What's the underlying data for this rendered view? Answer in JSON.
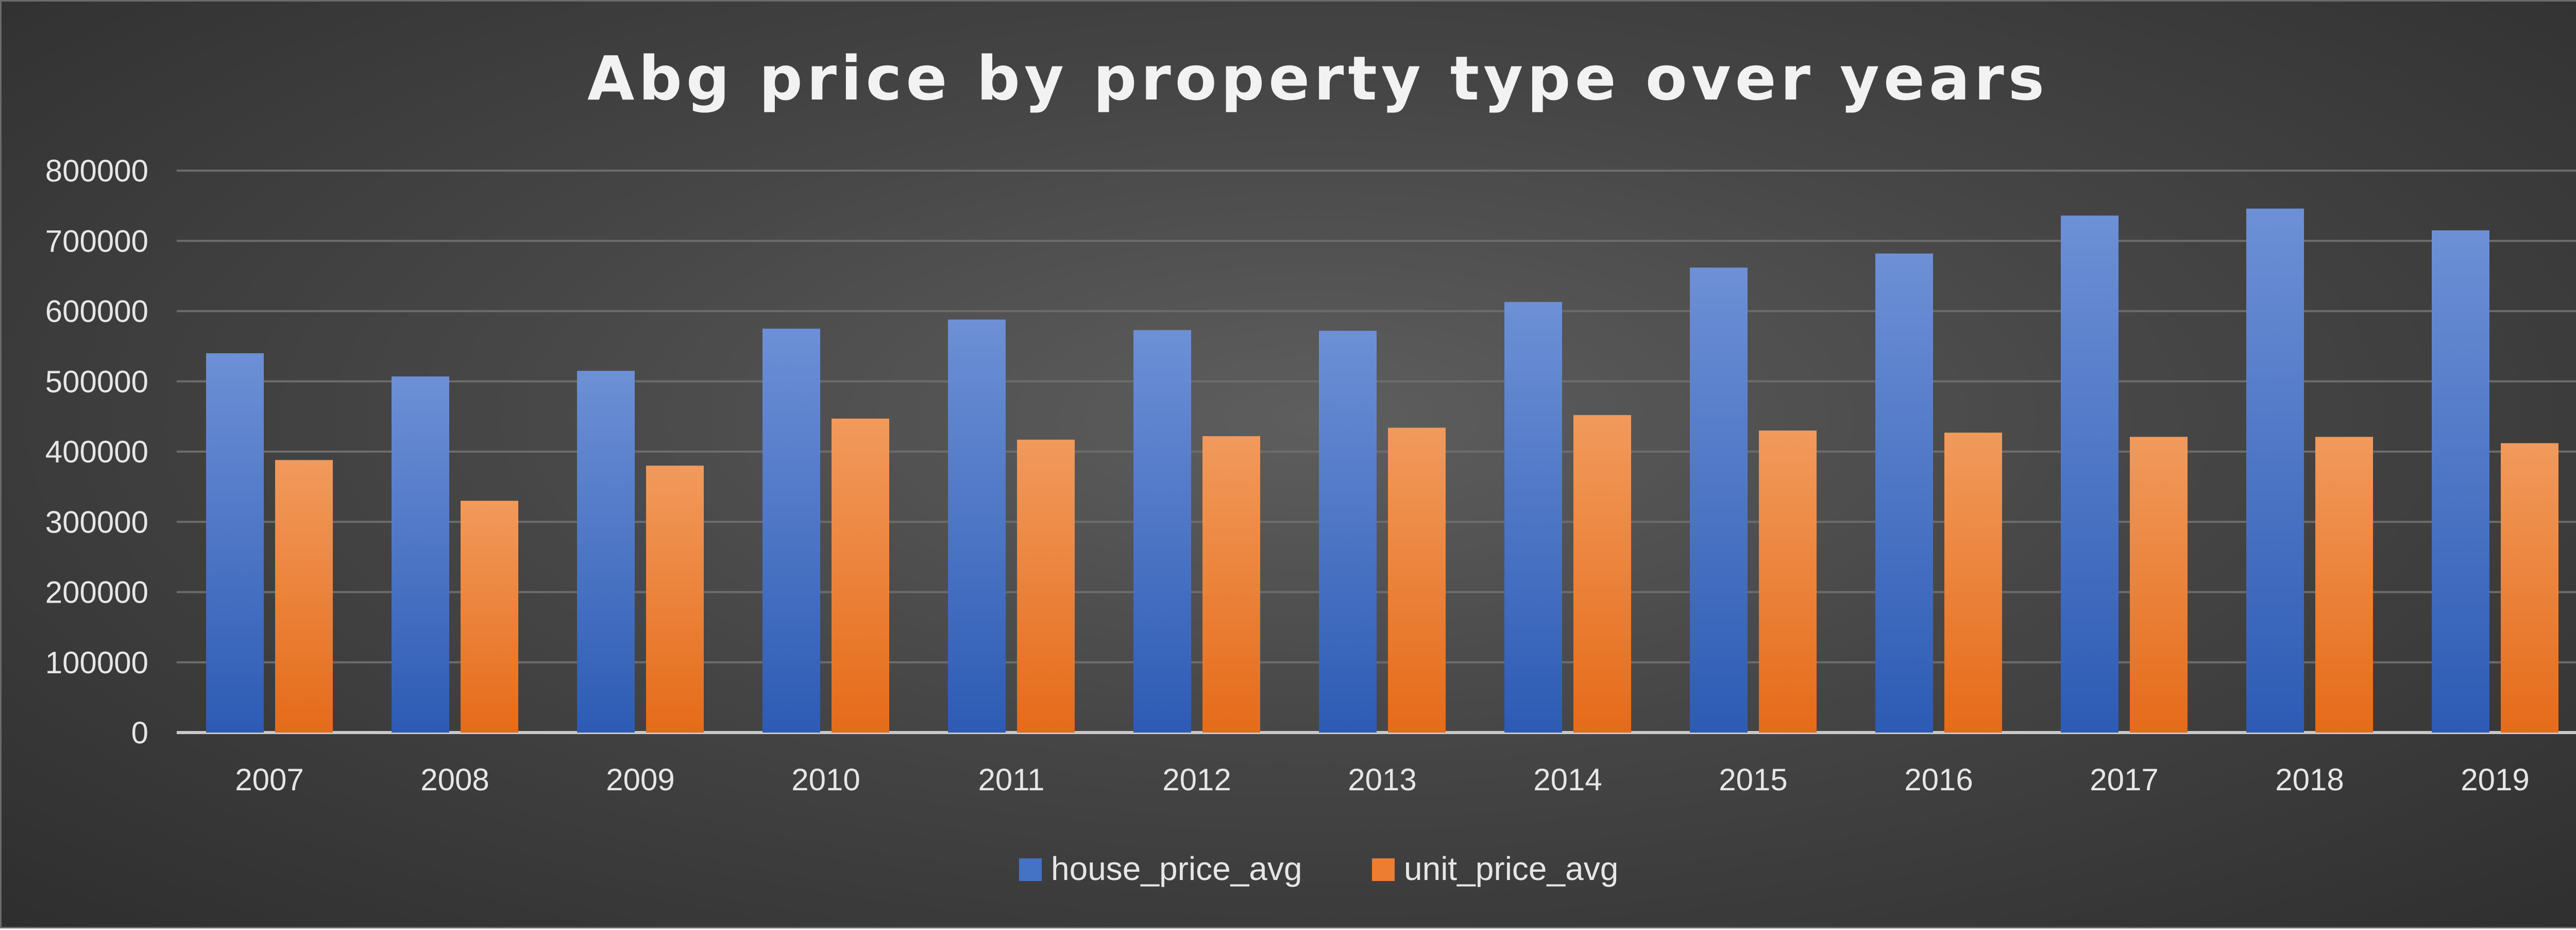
{
  "chart_data": {
    "type": "bar",
    "title": "Abg price by property type over years",
    "xlabel": "",
    "ylabel": "",
    "ylim": [
      0,
      800000
    ],
    "yticks": [
      0,
      100000,
      200000,
      300000,
      400000,
      500000,
      600000,
      700000,
      800000
    ],
    "ytick_labels": [
      "0",
      "100000",
      "200000",
      "300000",
      "400000",
      "500000",
      "600000",
      "700000",
      "800000"
    ],
    "categories": [
      "2007",
      "2008",
      "2009",
      "2010",
      "2011",
      "2012",
      "2013",
      "2014",
      "2015",
      "2016",
      "2017",
      "2018",
      "2019"
    ],
    "series": [
      {
        "name": "house_price_avg",
        "color": "#4472C4",
        "values": [
          540000,
          507000,
          515000,
          575000,
          588000,
          573000,
          572000,
          613000,
          662000,
          682000,
          736000,
          746000,
          715000
        ]
      },
      {
        "name": "unit_price_avg",
        "color": "#ED7D31",
        "values": [
          388000,
          330000,
          380000,
          447000,
          417000,
          422000,
          434000,
          452000,
          430000,
          427000,
          421000,
          421000,
          412000
        ]
      }
    ],
    "grid": true,
    "legend_position": "bottom"
  }
}
